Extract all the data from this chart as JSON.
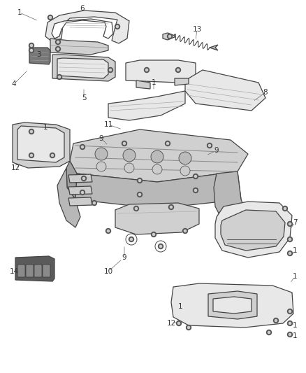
{
  "bg_color": "#ffffff",
  "line_color": "#444444",
  "fill_light": "#e8e8e8",
  "fill_mid": "#d0d0d0",
  "fill_dark": "#b8b8b8",
  "fill_darker": "#a0a0a0",
  "screw_color": "#555555",
  "label_color": "#333333",
  "label_fontsize": 7.5,
  "lw_main": 0.9,
  "lw_thin": 0.5,
  "fig_w": 4.38,
  "fig_h": 5.33,
  "dpi": 100
}
